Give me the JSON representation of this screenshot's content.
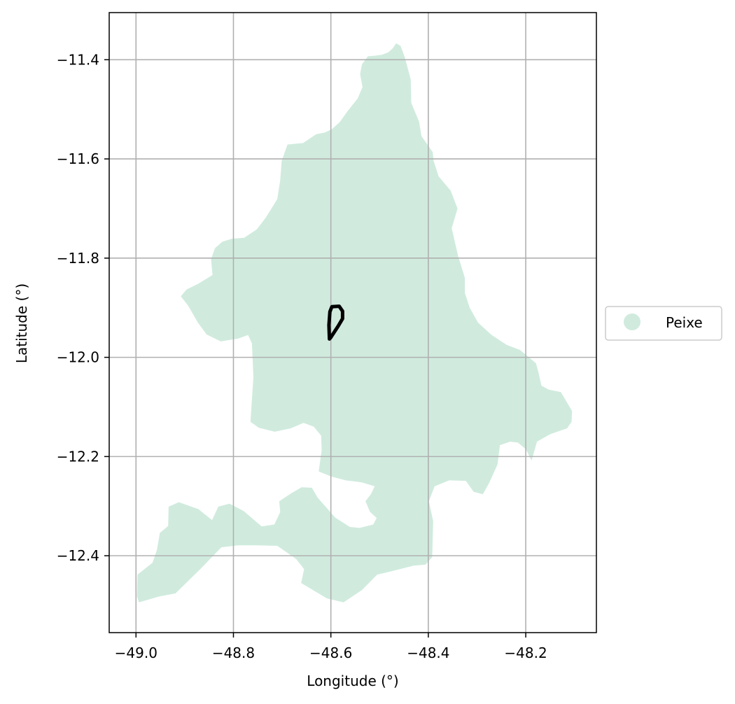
{
  "map": {
    "xlabel": "Longitude (°)",
    "ylabel": "Latitude (°)",
    "xlim": [
      -49.055,
      -48.055
    ],
    "ylim": [
      -12.555,
      -11.305
    ],
    "xticks": [
      -49.0,
      -48.8,
      -48.6,
      -48.4,
      -48.2
    ],
    "xtick_labels": [
      "−49.0",
      "−48.8",
      "−48.6",
      "−48.4",
      "−48.2"
    ],
    "yticks": [
      -11.4,
      -11.6,
      -11.8,
      -12.0,
      -12.2,
      -12.4
    ],
    "ytick_labels": [
      "−11.4",
      "−11.6",
      "−11.8",
      "−12.0",
      "−12.2",
      "−12.4"
    ],
    "grid": true,
    "legend": {
      "placement": "outside-right",
      "entries": [
        {
          "label": "Peixe",
          "color": "#d0ebde"
        }
      ]
    },
    "colors": {
      "region_fill": "#d0ebde",
      "grid": "#b0b0b0",
      "stream": "#000000"
    },
    "region_name": "Peixe",
    "region_boundary": [
      [
        -48.466,
        -11.367
      ],
      [
        -48.473,
        -11.377
      ],
      [
        -48.482,
        -11.385
      ],
      [
        -48.495,
        -11.39
      ],
      [
        -48.512,
        -11.392
      ],
      [
        -48.524,
        -11.393
      ],
      [
        -48.536,
        -11.409
      ],
      [
        -48.54,
        -11.429
      ],
      [
        -48.535,
        -11.455
      ],
      [
        -48.545,
        -11.478
      ],
      [
        -48.566,
        -11.504
      ],
      [
        -48.582,
        -11.526
      ],
      [
        -48.598,
        -11.54
      ],
      [
        -48.613,
        -11.547
      ],
      [
        -48.63,
        -11.55
      ],
      [
        -48.657,
        -11.568
      ],
      [
        -48.689,
        -11.571
      ],
      [
        -48.701,
        -11.604
      ],
      [
        -48.704,
        -11.643
      ],
      [
        -48.71,
        -11.681
      ],
      [
        -48.734,
        -11.719
      ],
      [
        -48.752,
        -11.742
      ],
      [
        -48.778,
        -11.759
      ],
      [
        -48.804,
        -11.761
      ],
      [
        -48.823,
        -11.767
      ],
      [
        -48.838,
        -11.78
      ],
      [
        -48.846,
        -11.802
      ],
      [
        -48.843,
        -11.834
      ],
      [
        -48.873,
        -11.852
      ],
      [
        -48.896,
        -11.863
      ],
      [
        -48.908,
        -11.877
      ],
      [
        -48.893,
        -11.896
      ],
      [
        -48.873,
        -11.93
      ],
      [
        -48.855,
        -11.954
      ],
      [
        -48.826,
        -11.968
      ],
      [
        -48.79,
        -11.962
      ],
      [
        -48.77,
        -11.955
      ],
      [
        -48.762,
        -11.972
      ],
      [
        -48.759,
        -12.04
      ],
      [
        -48.765,
        -12.13
      ],
      [
        -48.748,
        -12.142
      ],
      [
        -48.715,
        -12.15
      ],
      [
        -48.682,
        -12.143
      ],
      [
        -48.656,
        -12.132
      ],
      [
        -48.635,
        -12.14
      ],
      [
        -48.62,
        -12.158
      ],
      [
        -48.619,
        -12.187
      ],
      [
        -48.625,
        -12.23
      ],
      [
        -48.6,
        -12.24
      ],
      [
        -48.57,
        -12.248
      ],
      [
        -48.537,
        -12.252
      ],
      [
        -48.51,
        -12.26
      ],
      [
        -48.518,
        -12.276
      ],
      [
        -48.529,
        -12.29
      ],
      [
        -48.52,
        -12.311
      ],
      [
        -48.506,
        -12.324
      ],
      [
        -48.513,
        -12.337
      ],
      [
        -48.541,
        -12.344
      ],
      [
        -48.561,
        -12.342
      ],
      [
        -48.591,
        -12.323
      ],
      [
        -48.627,
        -12.283
      ],
      [
        -48.639,
        -12.263
      ],
      [
        -48.66,
        -12.262
      ],
      [
        -48.681,
        -12.274
      ],
      [
        -48.706,
        -12.29
      ],
      [
        -48.704,
        -12.312
      ],
      [
        -48.716,
        -12.337
      ],
      [
        -48.742,
        -12.341
      ],
      [
        -48.779,
        -12.31
      ],
      [
        -48.808,
        -12.295
      ],
      [
        -48.831,
        -12.301
      ],
      [
        -48.844,
        -12.328
      ],
      [
        -48.872,
        -12.306
      ],
      [
        -48.912,
        -12.292
      ],
      [
        -48.933,
        -12.301
      ],
      [
        -48.934,
        -12.34
      ],
      [
        -48.951,
        -12.354
      ],
      [
        -48.957,
        -12.388
      ],
      [
        -48.966,
        -12.414
      ],
      [
        -48.997,
        -12.438
      ],
      [
        -48.998,
        -12.482
      ],
      [
        -48.994,
        -12.494
      ],
      [
        -48.952,
        -12.482
      ],
      [
        -48.919,
        -12.476
      ],
      [
        -48.866,
        -12.425
      ],
      [
        -48.825,
        -12.383
      ],
      [
        -48.79,
        -12.379
      ],
      [
        -48.752,
        -12.379
      ],
      [
        -48.71,
        -12.38
      ],
      [
        -48.685,
        -12.397
      ],
      [
        -48.671,
        -12.407
      ],
      [
        -48.655,
        -12.427
      ],
      [
        -48.661,
        -12.455
      ],
      [
        -48.608,
        -12.486
      ],
      [
        -48.574,
        -12.494
      ],
      [
        -48.536,
        -12.469
      ],
      [
        -48.505,
        -12.438
      ],
      [
        -48.478,
        -12.432
      ],
      [
        -48.43,
        -12.42
      ],
      [
        -48.406,
        -12.418
      ],
      [
        -48.392,
        -12.403
      ],
      [
        -48.39,
        -12.33
      ],
      [
        -48.399,
        -12.29
      ],
      [
        -48.387,
        -12.26
      ],
      [
        -48.357,
        -12.248
      ],
      [
        -48.323,
        -12.249
      ],
      [
        -48.307,
        -12.271
      ],
      [
        -48.288,
        -12.276
      ],
      [
        -48.275,
        -12.253
      ],
      [
        -48.258,
        -12.216
      ],
      [
        -48.253,
        -12.177
      ],
      [
        -48.232,
        -12.17
      ],
      [
        -48.216,
        -12.172
      ],
      [
        -48.2,
        -12.185
      ],
      [
        -48.188,
        -12.208
      ],
      [
        -48.177,
        -12.17
      ],
      [
        -48.15,
        -12.155
      ],
      [
        -48.115,
        -12.143
      ],
      [
        -48.106,
        -12.13
      ],
      [
        -48.105,
        -12.108
      ],
      [
        -48.128,
        -12.07
      ],
      [
        -48.153,
        -12.065
      ],
      [
        -48.168,
        -12.057
      ],
      [
        -48.174,
        -12.03
      ],
      [
        -48.179,
        -12.012
      ],
      [
        -48.212,
        -11.985
      ],
      [
        -48.239,
        -11.975
      ],
      [
        -48.27,
        -11.955
      ],
      [
        -48.298,
        -11.93
      ],
      [
        -48.315,
        -11.9
      ],
      [
        -48.325,
        -11.87
      ],
      [
        -48.325,
        -11.84
      ],
      [
        -48.339,
        -11.795
      ],
      [
        -48.352,
        -11.74
      ],
      [
        -48.34,
        -11.7
      ],
      [
        -48.354,
        -11.664
      ],
      [
        -48.379,
        -11.635
      ],
      [
        -48.389,
        -11.604
      ],
      [
        -48.391,
        -11.586
      ],
      [
        -48.414,
        -11.554
      ],
      [
        -48.419,
        -11.525
      ],
      [
        -48.435,
        -11.487
      ],
      [
        -48.436,
        -11.44
      ],
      [
        -48.448,
        -11.396
      ],
      [
        -48.457,
        -11.372
      ]
    ],
    "stream_path": [
      [
        -48.603,
        -11.963
      ],
      [
        -48.604,
        -11.935
      ],
      [
        -48.602,
        -11.908
      ],
      [
        -48.598,
        -11.898
      ],
      [
        -48.583,
        -11.897
      ],
      [
        -48.576,
        -11.907
      ],
      [
        -48.576,
        -11.922
      ],
      [
        -48.585,
        -11.937
      ],
      [
        -48.601,
        -11.961
      ]
    ]
  }
}
